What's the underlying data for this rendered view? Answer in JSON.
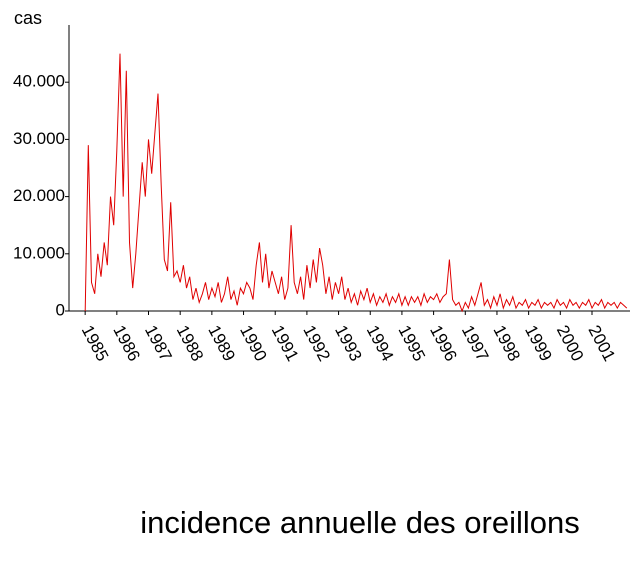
{
  "chart_data": {
    "type": "line",
    "ylabel": "cas",
    "title": "incidence annuelle des oreillons",
    "xlim": [
      1984.49,
      2002.2
    ],
    "xticks": [
      1985,
      1986,
      1987,
      1988,
      1989,
      1990,
      1991,
      1992,
      1993,
      1994,
      1995,
      1996,
      1997,
      1998,
      1999,
      2000,
      2001
    ],
    "ylim": [
      0,
      50000
    ],
    "yticks": [
      0,
      {
        "value": 10000,
        "label": "10.000"
      },
      {
        "value": 20000,
        "label": "20.000"
      },
      {
        "value": 30000,
        "label": "30.000"
      },
      {
        "value": 40000,
        "label": "40.000"
      }
    ],
    "series": [
      {
        "name": "cas",
        "color": "#e00000",
        "x": [
          1985.0,
          1985.1,
          1985.2,
          1985.3,
          1985.4,
          1985.5,
          1985.6,
          1985.7,
          1985.8,
          1985.9,
          1986.0,
          1986.1,
          1986.2,
          1986.3,
          1986.4,
          1986.5,
          1986.6,
          1986.7,
          1986.8,
          1986.9,
          1987.0,
          1987.1,
          1987.2,
          1987.3,
          1987.4,
          1987.5,
          1987.6,
          1987.7,
          1987.8,
          1987.9,
          1988.0,
          1988.1,
          1988.2,
          1988.3,
          1988.4,
          1988.5,
          1988.6,
          1988.7,
          1988.8,
          1988.9,
          1989.0,
          1989.1,
          1989.2,
          1989.3,
          1989.4,
          1989.5,
          1989.6,
          1989.7,
          1989.8,
          1989.9,
          1990.0,
          1990.1,
          1990.2,
          1990.3,
          1990.4,
          1990.5,
          1990.6,
          1990.7,
          1990.8,
          1990.9,
          1991.0,
          1991.1,
          1991.2,
          1991.3,
          1991.4,
          1991.5,
          1991.6,
          1991.7,
          1991.8,
          1991.9,
          1992.0,
          1992.1,
          1992.2,
          1992.3,
          1992.4,
          1992.5,
          1992.6,
          1992.7,
          1992.8,
          1992.9,
          1993.0,
          1993.1,
          1993.2,
          1993.3,
          1993.4,
          1993.5,
          1993.6,
          1993.7,
          1993.8,
          1993.9,
          1994.0,
          1994.1,
          1994.2,
          1994.3,
          1994.4,
          1994.5,
          1994.6,
          1994.7,
          1994.8,
          1994.9,
          1995.0,
          1995.1,
          1995.2,
          1995.3,
          1995.4,
          1995.5,
          1995.6,
          1995.7,
          1995.8,
          1995.9,
          1996.0,
          1996.1,
          1996.2,
          1996.3,
          1996.4,
          1996.5,
          1996.6,
          1996.7,
          1996.8,
          1996.9,
          1997.0,
          1997.1,
          1997.2,
          1997.3,
          1997.4,
          1997.5,
          1997.6,
          1997.7,
          1997.8,
          1997.9,
          1998.0,
          1998.1,
          1998.2,
          1998.3,
          1998.4,
          1998.5,
          1998.6,
          1998.7,
          1998.8,
          1998.9,
          1999.0,
          1999.1,
          1999.2,
          1999.3,
          1999.4,
          1999.5,
          1999.6,
          1999.7,
          1999.8,
          1999.9,
          2000.0,
          2000.1,
          2000.2,
          2000.3,
          2000.4,
          2000.5,
          2000.6,
          2000.7,
          2000.8,
          2000.9,
          2001.0,
          2001.1,
          2001.2,
          2001.3,
          2001.4,
          2001.5,
          2001.6,
          2001.7,
          2001.8,
          2001.9,
          2002.0,
          2002.1
        ],
        "values": [
          0,
          29000,
          5000,
          3000,
          10000,
          6000,
          12000,
          8000,
          20000,
          15000,
          28000,
          45000,
          20000,
          42000,
          12000,
          4000,
          10000,
          18000,
          26000,
          20000,
          30000,
          24000,
          31000,
          38000,
          22000,
          9000,
          7000,
          19000,
          6000,
          7000,
          5000,
          8000,
          4000,
          6000,
          2000,
          4000,
          1500,
          3000,
          5000,
          2000,
          4000,
          2500,
          5000,
          1500,
          3000,
          6000,
          2000,
          3500,
          1000,
          4000,
          3000,
          5000,
          4000,
          2000,
          8000,
          12000,
          5000,
          10000,
          4000,
          7000,
          5000,
          3000,
          6000,
          2000,
          4000,
          15000,
          5000,
          3000,
          6000,
          2000,
          8000,
          4000,
          9000,
          5000,
          11000,
          8000,
          3000,
          6000,
          2000,
          5000,
          3000,
          6000,
          2000,
          4000,
          1500,
          3000,
          1000,
          3500,
          2000,
          4000,
          1500,
          3000,
          1000,
          2500,
          1500,
          3000,
          1000,
          2500,
          1500,
          3000,
          1000,
          2500,
          1000,
          2500,
          1500,
          2500,
          1000,
          3000,
          1500,
          2500,
          2000,
          3000,
          1500,
          2500,
          3000,
          9000,
          2000,
          1000,
          1500,
          0,
          1500,
          500,
          2500,
          1000,
          3000,
          5000,
          1000,
          2000,
          500,
          2500,
          1000,
          3000,
          500,
          2000,
          1000,
          2500,
          500,
          1500,
          1000,
          2000,
          500,
          1500,
          1000,
          2000,
          500,
          1500,
          1000,
          1500,
          500,
          2000,
          1000,
          1500,
          500,
          2000,
          1000,
          1500,
          500,
          1500,
          1000,
          2000,
          500,
          1500,
          1000,
          2000,
          500,
          1500,
          1000,
          1500,
          500,
          1500,
          1000,
          500
        ]
      }
    ]
  }
}
